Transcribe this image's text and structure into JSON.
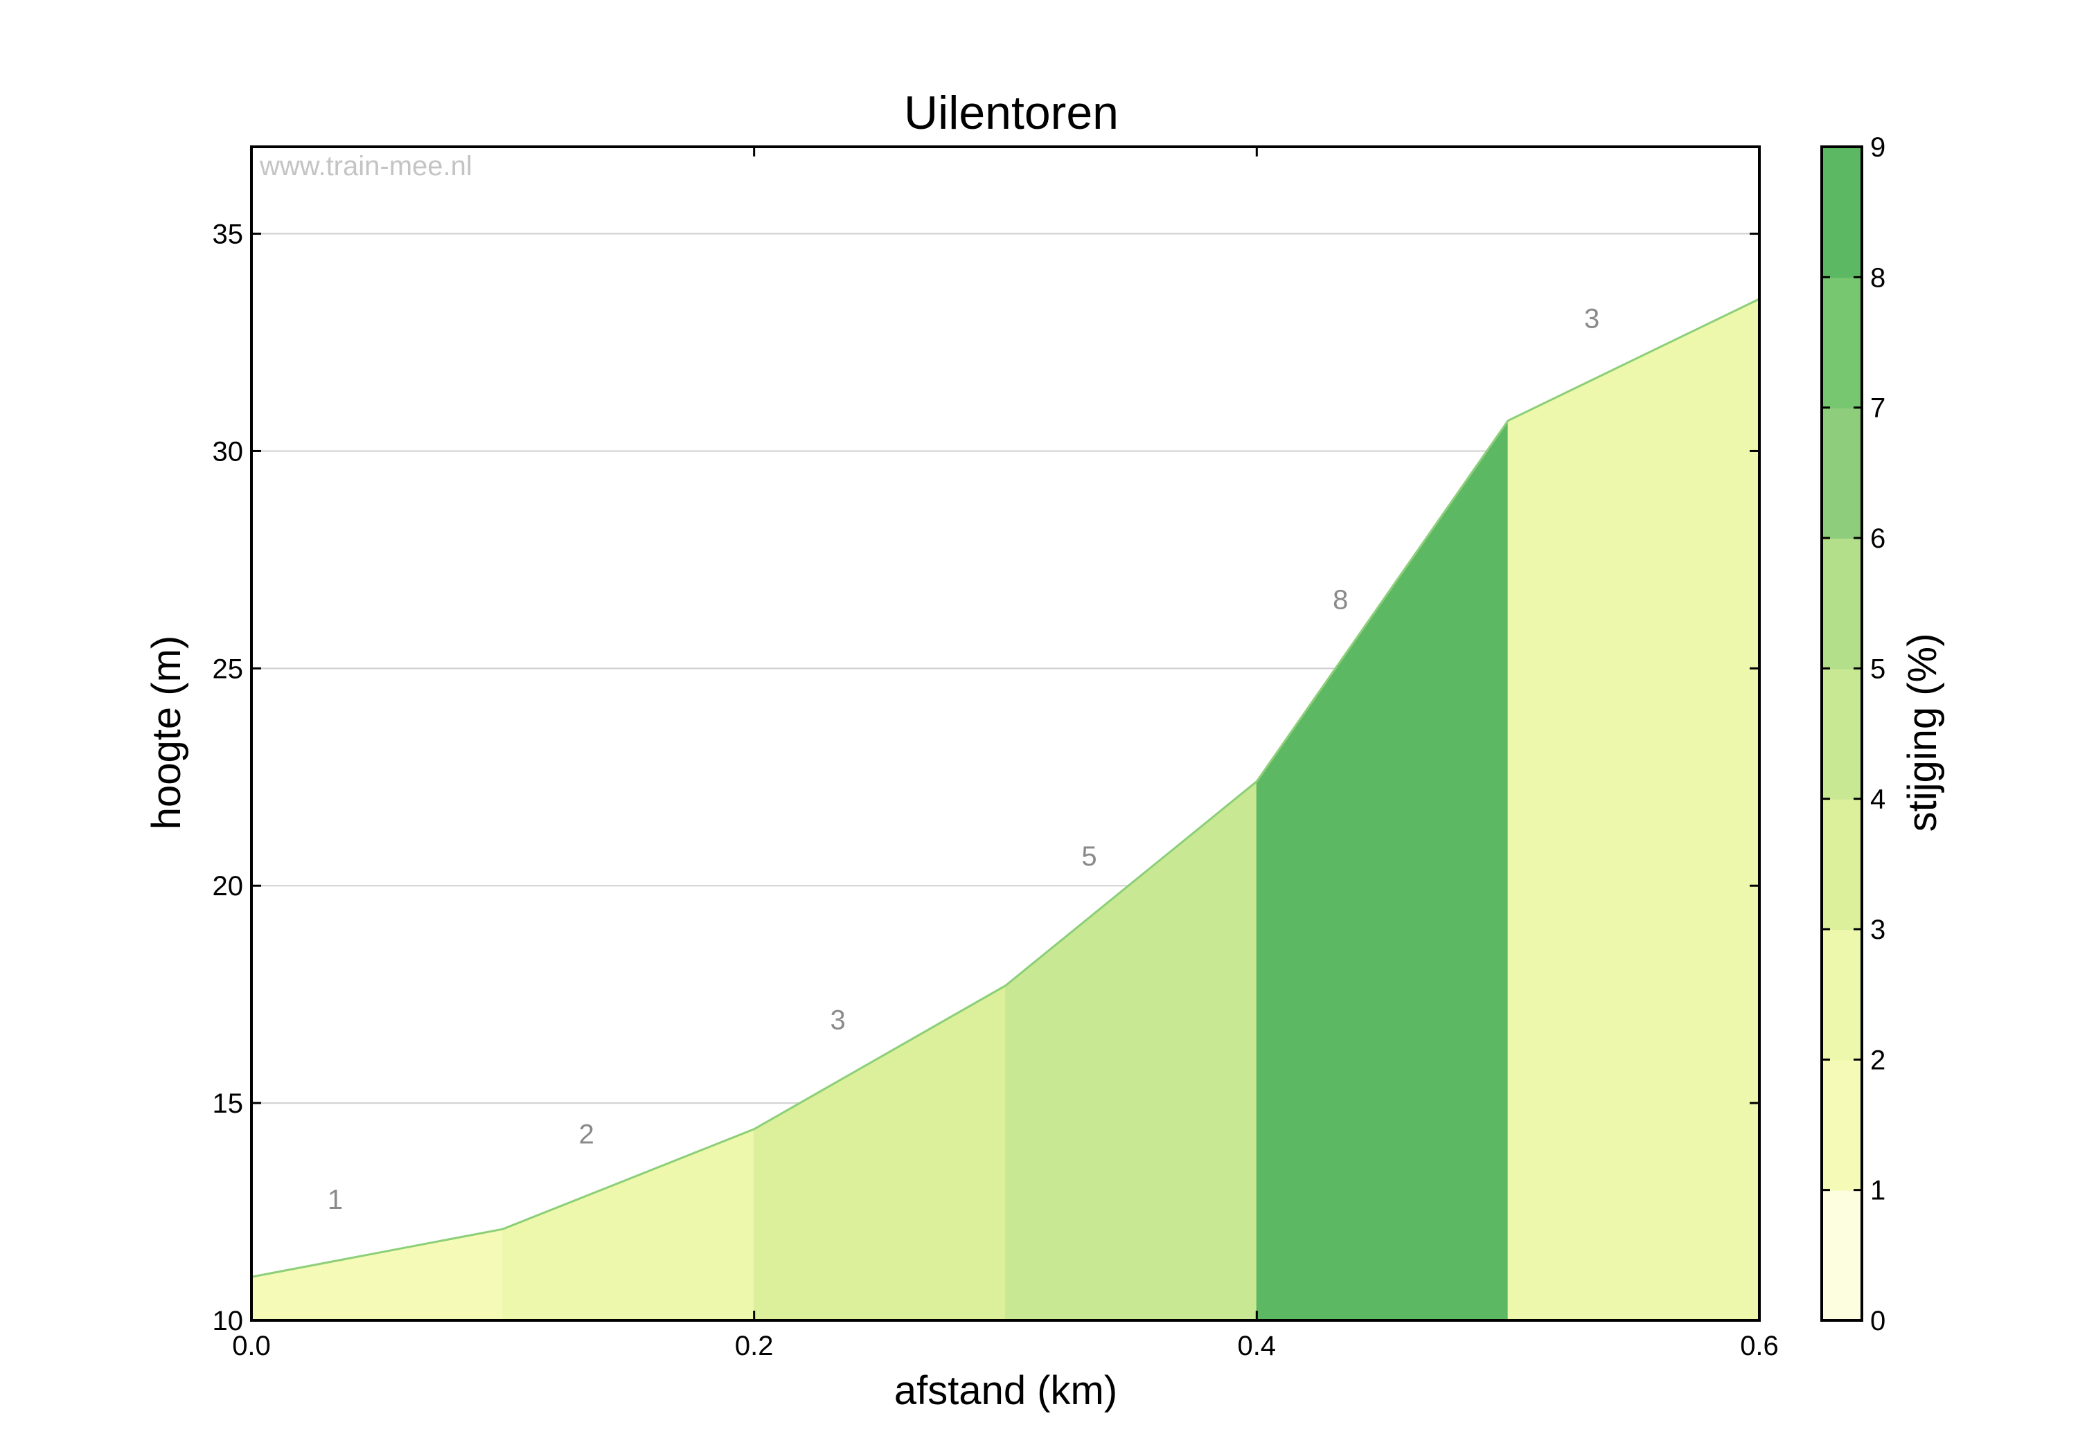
{
  "chart_data": {
    "type": "area",
    "title": "Uilentoren",
    "xlabel": "afstand (km)",
    "ylabel": "hoogte (m)",
    "xlim": [
      0.0,
      0.6
    ],
    "ylim": [
      10,
      37
    ],
    "xticks": [
      0.0,
      0.2,
      0.4,
      0.6
    ],
    "xtick_labels": [
      "0.0",
      "0.2",
      "0.4",
      "0.6"
    ],
    "yticks": [
      10,
      15,
      20,
      25,
      30,
      35
    ],
    "ytick_labels": [
      "10",
      "15",
      "20",
      "25",
      "30",
      "35"
    ],
    "grid": "horizontal",
    "watermark": "www.train-mee.nl",
    "profile": {
      "x": [
        0.0,
        0.1,
        0.2,
        0.3,
        0.4,
        0.5,
        0.6
      ],
      "y": [
        11.0,
        12.1,
        14.4,
        17.7,
        22.4,
        30.7,
        33.5
      ]
    },
    "segments": [
      {
        "label": "1",
        "gradient": 1,
        "color": "#f5fab7"
      },
      {
        "label": "2",
        "gradient": 2,
        "color": "#edf8ac"
      },
      {
        "label": "3",
        "gradient": 3,
        "color": "#dcef9b"
      },
      {
        "label": "5",
        "gradient": 5,
        "color": "#c8e894"
      },
      {
        "label": "8",
        "gradient": 8,
        "color": "#5cb863"
      },
      {
        "label": "3",
        "gradient": 3,
        "color": "#edf8ac"
      }
    ],
    "colorbar": {
      "label": "stijging (%)",
      "range": [
        0,
        9
      ],
      "ticks": [
        "0",
        "1",
        "2",
        "3",
        "4",
        "5",
        "6",
        "7",
        "8",
        "9"
      ],
      "colors": [
        "#fdfde0",
        "#f5fab7",
        "#edf8ac",
        "#dcef9b",
        "#c8e894",
        "#b4df8a",
        "#8ecd7b",
        "#77c670",
        "#5cb863"
      ]
    },
    "line_color": "#8ccf78"
  }
}
